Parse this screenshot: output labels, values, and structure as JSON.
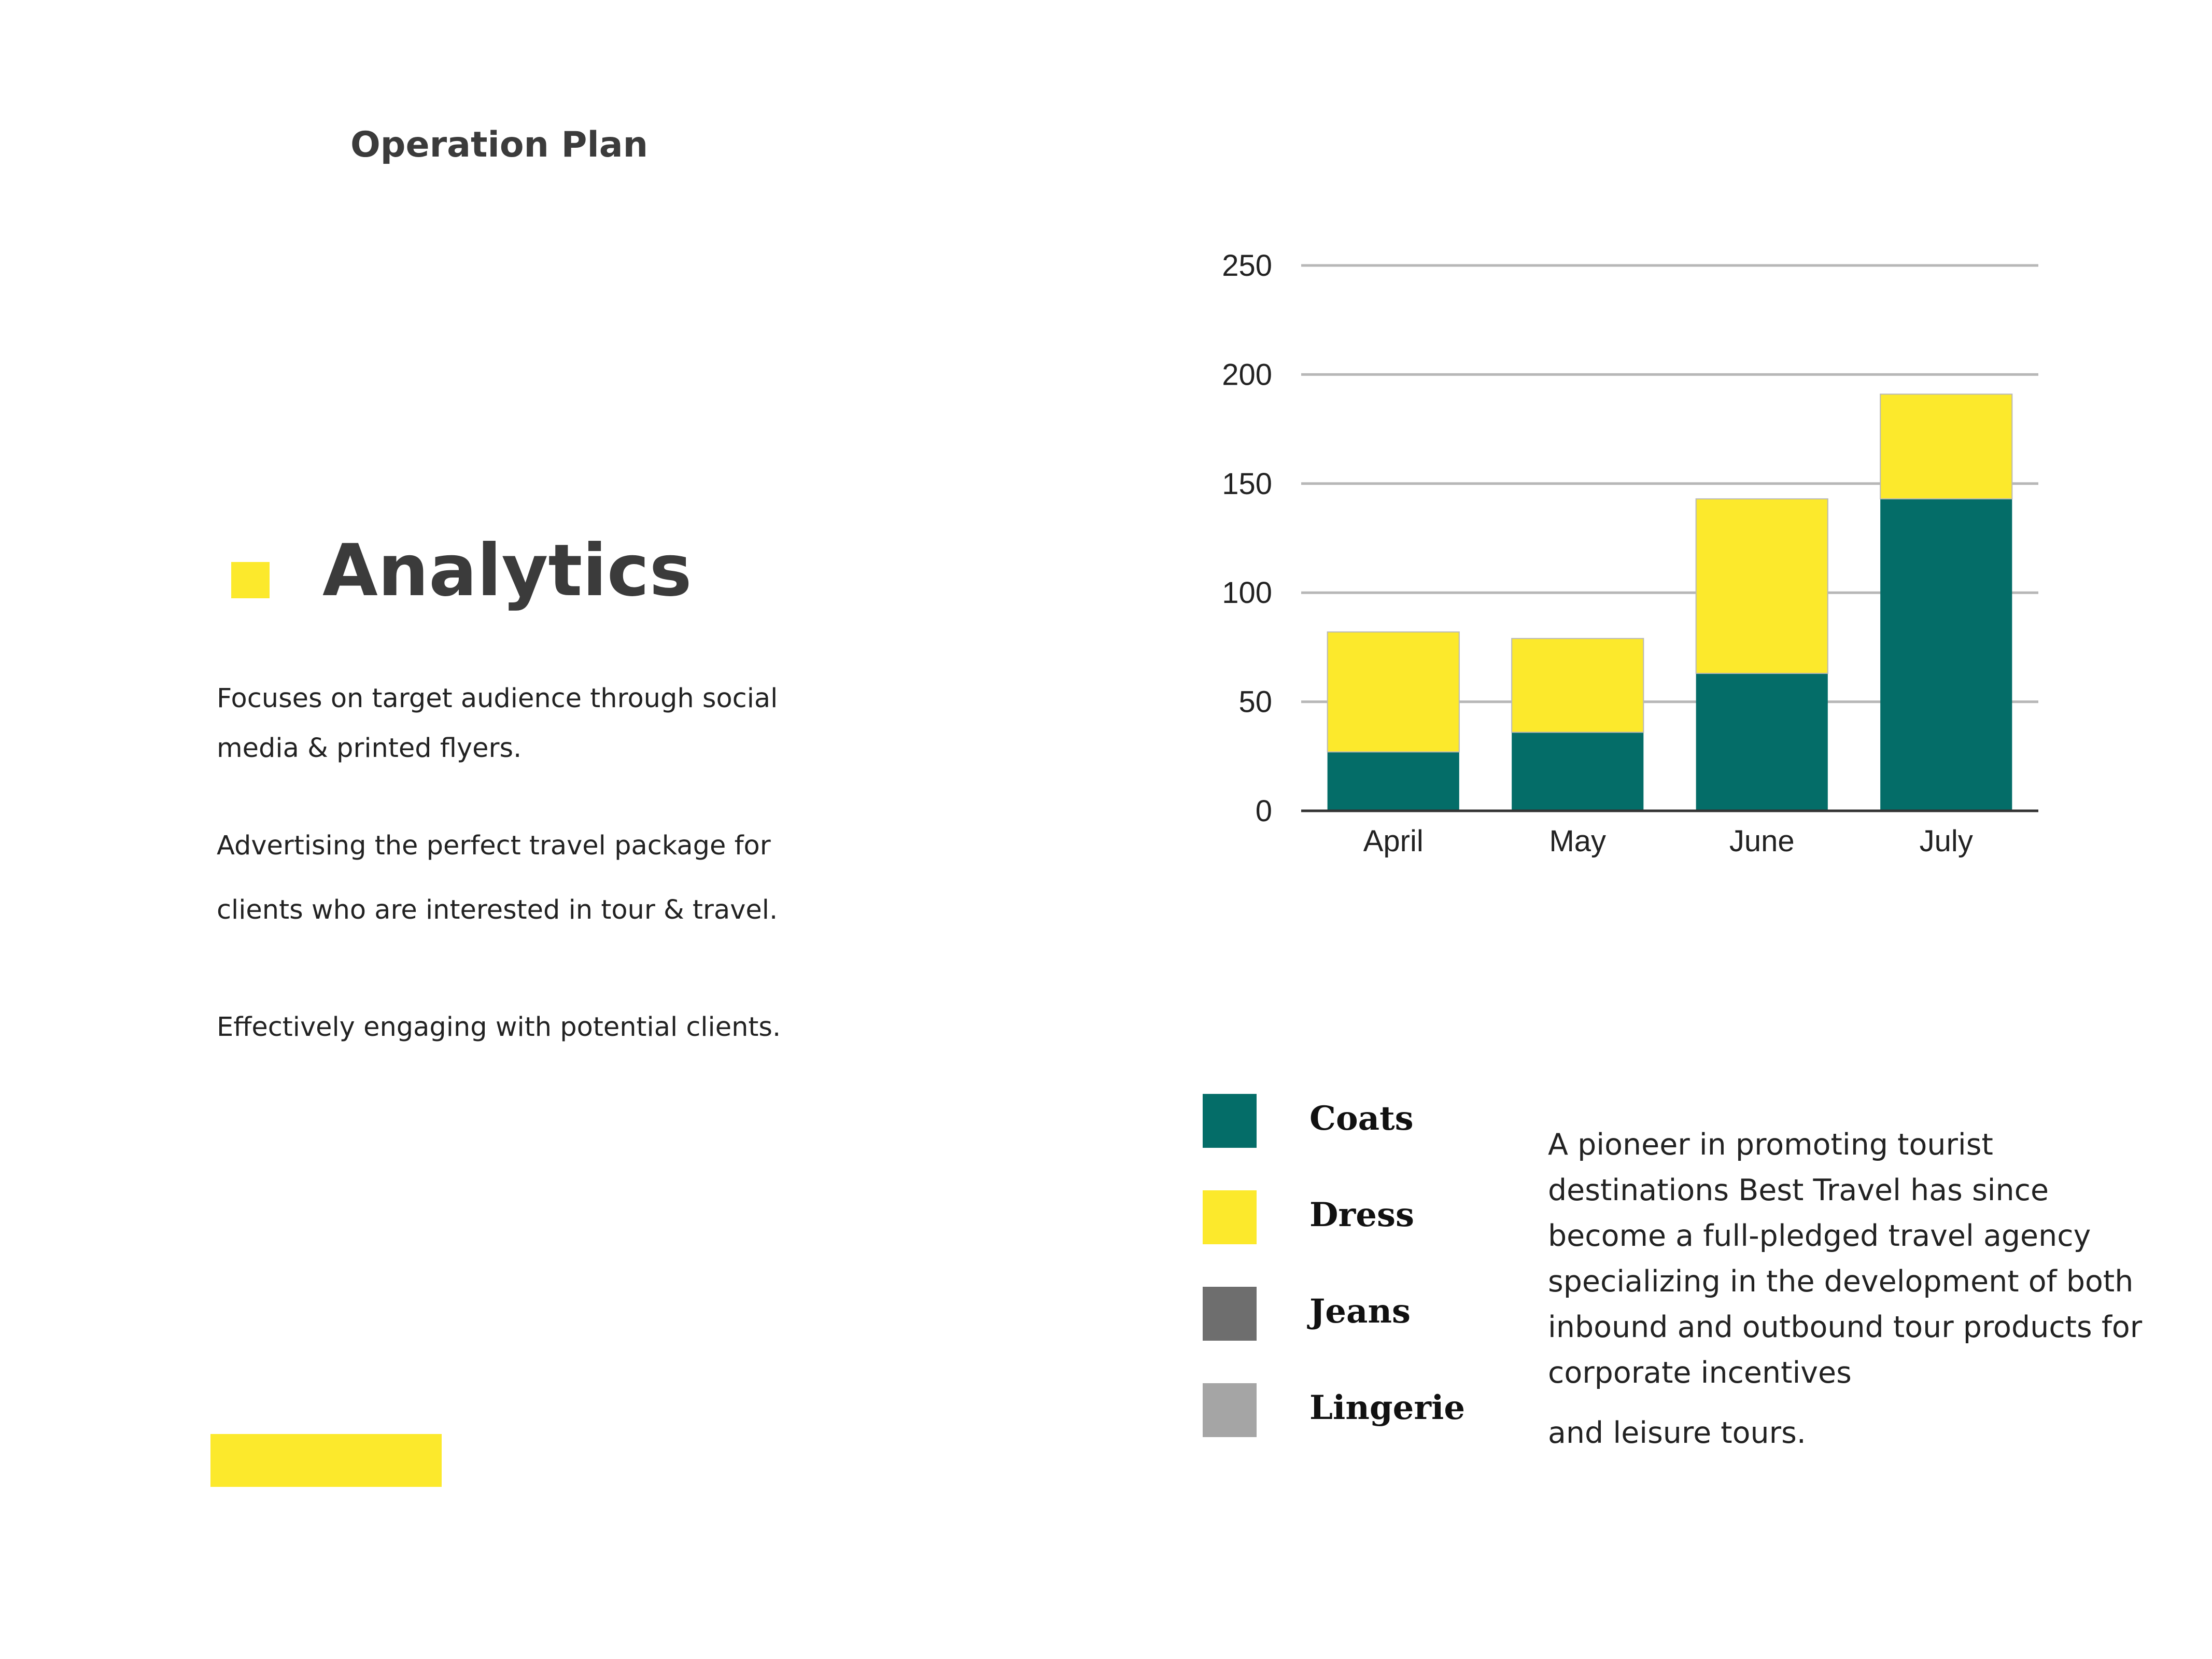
{
  "header": {
    "title": "Operation Plan"
  },
  "section": {
    "title": "Analytics",
    "paragraphs": [
      "Focuses on target audience through social",
      "media & printed flyers.",
      "Advertising the perfect travel package for",
      "clients who are interested in tour & travel.",
      "Effectively engaging with potential clients."
    ]
  },
  "colors": {
    "accent": "#fce92c",
    "coats": "#046d68",
    "dress": "#fce92c",
    "jeans": "#6e6e6e",
    "lingerie": "#a5a5a5",
    "grid": "#b7b7b7",
    "axis": "#333333"
  },
  "chart_data": {
    "type": "bar",
    "stacked": true,
    "categories": [
      "April",
      "May",
      "June",
      "July"
    ],
    "series": [
      {
        "name": "Coats",
        "values": [
          27,
          36,
          63,
          143
        ]
      },
      {
        "name": "Dress",
        "values": [
          55,
          43,
          80,
          48
        ]
      }
    ],
    "ylim": [
      0,
      250
    ],
    "yticks": [
      0,
      50,
      100,
      150,
      200,
      250
    ],
    "grid": true,
    "title": "",
    "xlabel": "",
    "ylabel": ""
  },
  "legend": {
    "items": [
      {
        "label": "Coats",
        "color": "#046d68"
      },
      {
        "label": "Dress",
        "color": "#fce92c"
      },
      {
        "label": "Jeans",
        "color": "#6e6e6e"
      },
      {
        "label": "Lingerie",
        "color": "#a5a5a5"
      }
    ]
  },
  "description": {
    "lines": [
      "A pioneer in promoting tourist",
      "destinations Best Travel has since",
      "become a full-pledged travel agency",
      "specializing in the development of both",
      "inbound and outbound tour products for",
      "corporate incentives"
    ],
    "tail": "and leisure tours."
  }
}
